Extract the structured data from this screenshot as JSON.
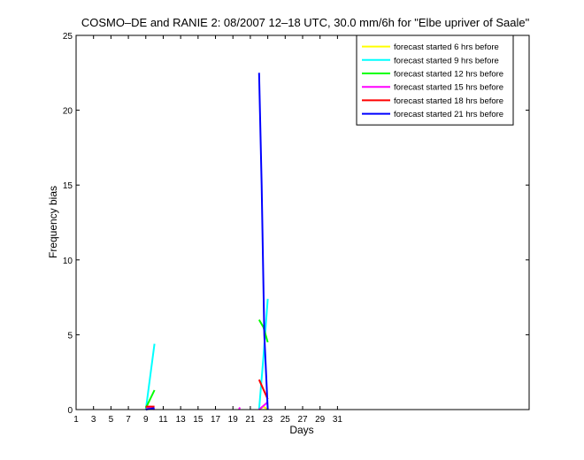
{
  "chart_data": {
    "type": "line",
    "title": "COSMO–DE and RANIE 2: 08/2007 12–18 UTC, 30.0 mm/6h for \"Elbe upriver of Saale\"",
    "xlabel": "Days",
    "ylabel": "Frequency bias",
    "xlim": [
      1,
      53
    ],
    "ylim": [
      0,
      25
    ],
    "x_ticks": [
      "1",
      "3",
      "5",
      "7",
      "9",
      "11",
      "13",
      "15",
      "17",
      "19",
      "21",
      "23",
      "25",
      "27",
      "29",
      "31"
    ],
    "y_ticks": [
      "0",
      "5",
      "10",
      "15",
      "20",
      "25"
    ],
    "grid": false,
    "legend_position": "top-right",
    "series": [
      {
        "name": "forecast started 6 hrs before",
        "color": "#ffff00",
        "x": [
          22,
          22.5,
          23
        ],
        "y": [
          0,
          0.2,
          0
        ]
      },
      {
        "name": "forecast started 9 hrs before",
        "color": "#00ffff",
        "x": [
          9,
          10,
          null,
          22,
          22.5,
          23
        ],
        "y": [
          0,
          4.4,
          null,
          0,
          3.5,
          7.4
        ]
      },
      {
        "name": "forecast started 12 hrs before",
        "color": "#00ff00",
        "x": [
          9,
          10,
          null,
          22,
          22.5,
          23
        ],
        "y": [
          0.1,
          1.3,
          null,
          6.0,
          5.5,
          4.5
        ]
      },
      {
        "name": "forecast started 15 hrs before",
        "color": "#ff00ff",
        "x": [
          9,
          9.5,
          10,
          null,
          19.7,
          19.8,
          null,
          22,
          23
        ],
        "y": [
          0,
          0.2,
          0,
          null,
          0,
          0.15,
          null,
          0,
          0.5
        ]
      },
      {
        "name": "forecast started 18 hrs before",
        "color": "#ff0000",
        "x": [
          9,
          10,
          null,
          22,
          23
        ],
        "y": [
          0.2,
          0.2,
          null,
          2.0,
          0.7
        ]
      },
      {
        "name": "forecast started 21 hrs before",
        "color": "#0000ff",
        "x": [
          9,
          10,
          null,
          22,
          22.3,
          22.6,
          23
        ],
        "y": [
          0,
          0.1,
          null,
          22.5,
          15,
          5,
          0
        ]
      }
    ]
  }
}
